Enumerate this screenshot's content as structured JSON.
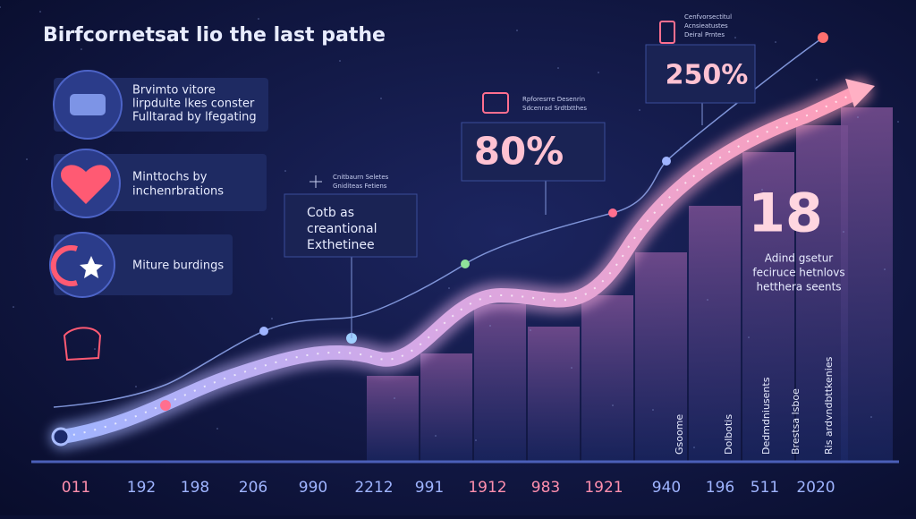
{
  "title": "Birfcornetsat lio the last pathe",
  "cards": [
    {
      "lines": [
        "Brvimto vitore",
        "lirpdulte lkes conster",
        "Fulltarad by lfegating"
      ]
    },
    {
      "lines": [
        "Minttochs by",
        "inchenrbrations"
      ]
    },
    {
      "lines": [
        "Miture burdings"
      ]
    }
  ],
  "callouts": [
    {
      "caption": [
        "Cnitbaurn Seletes",
        "Gniditeas Fetiens"
      ],
      "text": [
        "Cotb as",
        "creantional",
        "Exthetinee"
      ]
    },
    {
      "caption": [
        "Rpforesrre Desenrin",
        "Sdcenrad Srdtbtthes"
      ],
      "big": "80%"
    },
    {
      "caption": [
        "Cenfvorsectitul",
        "Acnsieatustes",
        "Deiral Prntes"
      ],
      "big": "250%"
    }
  ],
  "stat": {
    "big": "18",
    "lines": [
      "Adind gsetur",
      "feciruce hetnlovs",
      "hetthera seents"
    ]
  },
  "bar_labels": [
    "Gsoome",
    "Dolbotis",
    "Dedmdniusents",
    "Brestsa lsboe",
    "Ris ardvndbttkenies"
  ],
  "axis_labels": [
    "011",
    "192",
    "198",
    "206",
    "990",
    "2212",
    "991",
    "1912",
    "983",
    "1921",
    "940",
    "196",
    "511",
    "2020"
  ]
}
